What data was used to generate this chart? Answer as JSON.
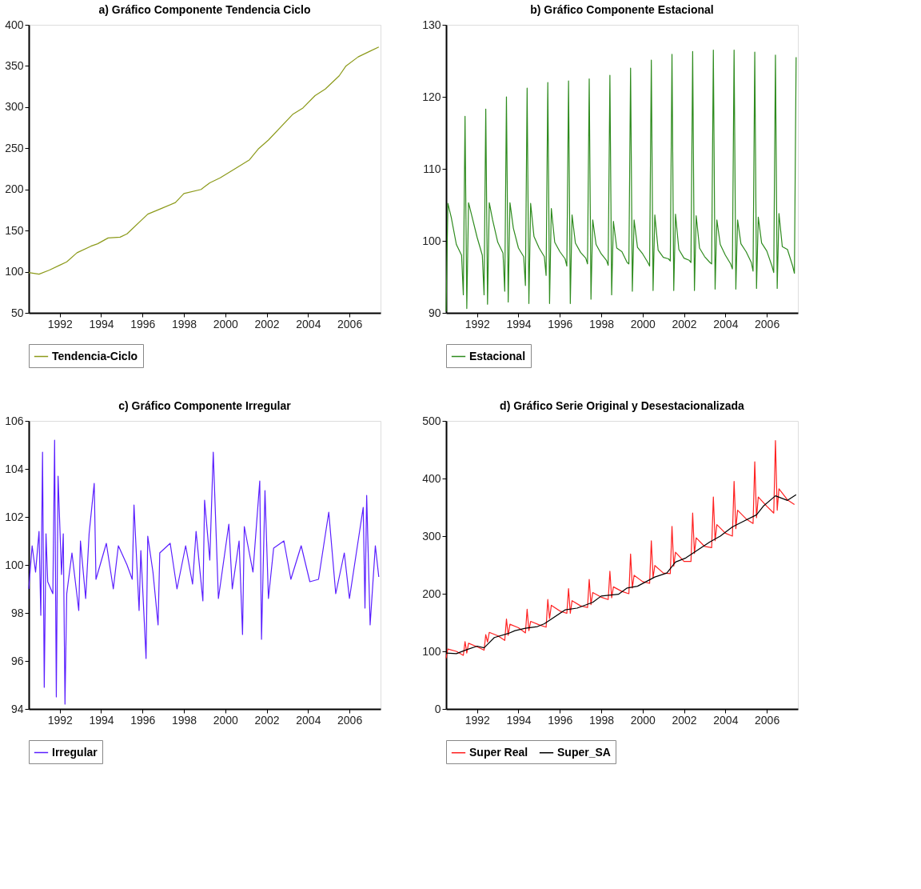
{
  "chart_data": [
    {
      "type": "line",
      "title": "a) Gráfico Componente Tendencia Ciclo",
      "legend": "bottom",
      "xlim": [
        "1991-01",
        "2008-01"
      ],
      "ylim": [
        50,
        400
      ],
      "yticks": [
        50,
        100,
        150,
        200,
        250,
        300,
        350,
        400
      ],
      "xticks": [
        {
          "value": "1992-07",
          "label": "1992"
        },
        {
          "value": "1994-07",
          "label": "1994"
        },
        {
          "value": "1996-07",
          "label": "1996"
        },
        {
          "value": "1998-07",
          "label": "1998"
        },
        {
          "value": "2000-07",
          "label": "2000"
        },
        {
          "value": "2002-07",
          "label": "2002"
        },
        {
          "value": "2004-07",
          "label": "2004"
        },
        {
          "value": "2006-07",
          "label": "2006"
        }
      ],
      "series": [
        {
          "name": "Tendencia-Ciclo",
          "color": "#8c9a1a",
          "x": [
            "1991-01",
            "1991-07",
            "1992-01",
            "1992-07",
            "1992-11",
            "1993-05",
            "1994-01",
            "1994-05",
            "1994-11",
            "1995-06",
            "1995-10",
            "1996-10",
            "1997-05",
            "1998-02",
            "1998-07",
            "1999-05",
            "1999-10",
            "2000-04",
            "2001-02",
            "2001-09",
            "2002-02",
            "2002-08",
            "2003-10",
            "2004-04",
            "2004-11",
            "2005-05",
            "2006-01",
            "2006-05",
            "2006-12",
            "2007-07",
            "2007-12"
          ],
          "values": [
            99,
            97,
            102,
            108,
            112,
            123,
            131,
            134,
            141,
            142,
            146,
            170,
            176,
            184,
            195,
            200,
            208,
            214,
            227,
            236,
            249,
            260,
            291,
            299,
            314,
            322,
            338,
            350,
            361,
            368,
            373
          ]
        }
      ]
    },
    {
      "type": "line",
      "title": "b) Gráfico Componente Estacional",
      "legend": "bottom",
      "xlim": [
        "1991-01",
        "2008-01"
      ],
      "ylim": [
        90,
        130
      ],
      "yticks": [
        90,
        100,
        110,
        120,
        130
      ],
      "xticks": [
        {
          "value": "1992-07",
          "label": "1992"
        },
        {
          "value": "1994-07",
          "label": "1994"
        },
        {
          "value": "1996-07",
          "label": "1996"
        },
        {
          "value": "1998-07",
          "label": "1998"
        },
        {
          "value": "2000-07",
          "label": "2000"
        },
        {
          "value": "2002-07",
          "label": "2002"
        },
        {
          "value": "2004-07",
          "label": "2004"
        },
        {
          "value": "2006-07",
          "label": "2006"
        }
      ],
      "series": [
        {
          "name": "Estacional",
          "color": "#2e8b1e",
          "x": [
            "1991-01",
            "1991-02",
            "1991-04",
            "1991-07",
            "1991-10",
            "1991-11",
            "1991-12",
            "1992-01",
            "1992-02",
            "1992-04",
            "1992-07",
            "1992-10",
            "1992-11",
            "1992-12",
            "1993-01",
            "1993-02",
            "1993-04",
            "1993-07",
            "1993-10",
            "1993-11",
            "1993-12",
            "1994-01",
            "1994-02",
            "1994-04",
            "1994-07",
            "1994-10",
            "1994-11",
            "1994-12",
            "1995-01",
            "1995-02",
            "1995-04",
            "1995-07",
            "1995-10",
            "1995-11",
            "1995-12",
            "1996-01",
            "1996-02",
            "1996-04",
            "1996-07",
            "1996-10",
            "1996-11",
            "1996-12",
            "1997-01",
            "1997-02",
            "1997-04",
            "1997-07",
            "1997-10",
            "1997-11",
            "1997-12",
            "1998-01",
            "1998-02",
            "1998-04",
            "1998-07",
            "1998-10",
            "1998-11",
            "1998-12",
            "1999-01",
            "1999-02",
            "1999-04",
            "1999-07",
            "1999-10",
            "1999-11",
            "1999-12",
            "2000-01",
            "2000-02",
            "2000-04",
            "2000-07",
            "2000-10",
            "2000-11",
            "2000-12",
            "2001-01",
            "2001-02",
            "2001-04",
            "2001-07",
            "2001-10",
            "2001-11",
            "2001-12",
            "2002-01",
            "2002-02",
            "2002-04",
            "2002-07",
            "2002-10",
            "2002-11",
            "2002-12",
            "2003-01",
            "2003-02",
            "2003-04",
            "2003-07",
            "2003-10",
            "2003-11",
            "2003-12",
            "2004-01",
            "2004-02",
            "2004-04",
            "2004-07",
            "2004-10",
            "2004-11",
            "2004-12",
            "2005-01",
            "2005-02",
            "2005-04",
            "2005-07",
            "2005-10",
            "2005-11",
            "2005-12",
            "2006-01",
            "2006-02",
            "2006-04",
            "2006-07",
            "2006-10",
            "2006-11",
            "2006-12",
            "2007-01",
            "2007-02",
            "2007-04",
            "2007-07",
            "2007-10",
            "2007-11",
            "2007-12"
          ],
          "values": [
            90.2,
            105.2,
            103.3,
            99.5,
            98,
            92.5,
            117.3,
            90.6,
            105.3,
            103.4,
            100.5,
            98,
            92.5,
            118.3,
            91.2,
            105.3,
            102.9,
            99.8,
            98.3,
            93,
            120,
            91.5,
            105.3,
            101.8,
            99,
            97.8,
            93.8,
            121.2,
            91.3,
            105.2,
            100.6,
            99,
            97.8,
            95.2,
            122,
            91.3,
            104.5,
            99.8,
            98.5,
            97.5,
            96.5,
            122.2,
            91.3,
            103.6,
            99.7,
            98.4,
            97.6,
            96.8,
            122.5,
            91.9,
            102.9,
            99.5,
            98.2,
            97.3,
            96.6,
            123,
            92.5,
            102.7,
            99,
            98.5,
            97,
            96.8,
            124,
            93,
            102.9,
            99.1,
            98.2,
            97,
            96.5,
            125.1,
            93.1,
            103.6,
            98.7,
            97.7,
            97.5,
            97.2,
            125.9,
            93.1,
            103.7,
            98.8,
            97.6,
            97.3,
            97,
            126.3,
            93.1,
            103.5,
            99,
            97.8,
            97,
            96.8,
            126.5,
            93.3,
            102.9,
            99.5,
            98,
            96.8,
            96.1,
            126.5,
            93.3,
            102.9,
            99.6,
            98.5,
            97,
            95.8,
            126.2,
            93.4,
            103.3,
            99.7,
            98.6,
            96.5,
            95.6,
            125.8,
            93.4,
            103.8,
            99.2,
            98.8,
            96.5,
            95.5,
            125.5
          ]
        }
      ]
    },
    {
      "type": "line",
      "title": "c) Gráfico Componente Irregular",
      "legend": "bottom",
      "xlim": [
        "1991-01",
        "2008-01"
      ],
      "ylim": [
        94,
        106
      ],
      "yticks": [
        94,
        96,
        98,
        100,
        102,
        104,
        106
      ],
      "xticks": [
        {
          "value": "1992-07",
          "label": "1992"
        },
        {
          "value": "1994-07",
          "label": "1994"
        },
        {
          "value": "1996-07",
          "label": "1996"
        },
        {
          "value": "1998-07",
          "label": "1998"
        },
        {
          "value": "2000-07",
          "label": "2000"
        },
        {
          "value": "2002-07",
          "label": "2002"
        },
        {
          "value": "2004-07",
          "label": "2004"
        },
        {
          "value": "2006-07",
          "label": "2006"
        }
      ],
      "series": [
        {
          "name": "Irregular",
          "color": "#5a1fff",
          "x": [
            "1991-01",
            "1991-03",
            "1991-05",
            "1991-07",
            "1991-08",
            "1991-09",
            "1991-10",
            "1991-11",
            "1991-12",
            "1992-03",
            "1992-04",
            "1992-05",
            "1992-06",
            "1992-08",
            "1992-09",
            "1992-10",
            "1992-11",
            "1993-02",
            "1993-06",
            "1993-07",
            "1993-10",
            "1993-12",
            "1994-03",
            "1994-04",
            "1994-10",
            "1995-02",
            "1995-05",
            "1995-10",
            "1996-01",
            "1996-02",
            "1996-05",
            "1996-06",
            "1996-09",
            "1996-10",
            "1997-01",
            "1997-04",
            "1997-05",
            "1997-11",
            "1998-03",
            "1998-08",
            "1998-12",
            "1999-02",
            "1999-06",
            "1999-07",
            "1999-10",
            "1999-12",
            "2000-03",
            "2000-09",
            "2000-11",
            "2001-03",
            "2001-05",
            "2001-06",
            "2001-11",
            "2002-03",
            "2002-04",
            "2002-06",
            "2002-08",
            "2002-11",
            "2003-05",
            "2003-09",
            "2004-03",
            "2004-08",
            "2005-01",
            "2005-07",
            "2005-11",
            "2006-04",
            "2006-07",
            "2007-03",
            "2007-04",
            "2007-05",
            "2007-07",
            "2007-10",
            "2007-12"
          ],
          "values": [
            99.0,
            100.8,
            99.7,
            101.4,
            97.9,
            104.7,
            94.9,
            101.3,
            99.3,
            98.8,
            105.2,
            94.5,
            103.7,
            99.6,
            101.3,
            94.2,
            98.8,
            100.5,
            98.1,
            101.0,
            98.6,
            101.3,
            103.4,
            99.4,
            100.9,
            99.0,
            100.8,
            100.0,
            99.4,
            102.5,
            98.1,
            100.6,
            96.1,
            101.2,
            99.7,
            97.5,
            100.5,
            100.9,
            99.0,
            100.8,
            99.2,
            101.4,
            98.5,
            102.7,
            100.2,
            104.7,
            98.6,
            101.7,
            99.0,
            101.0,
            97.1,
            101.6,
            99.7,
            103.5,
            96.9,
            103.1,
            98.6,
            100.7,
            101.0,
            99.4,
            100.8,
            99.3,
            99.4,
            102.2,
            98.8,
            100.5,
            98.6,
            102.4,
            98.2,
            102.9,
            97.5,
            100.8,
            99.5
          ]
        }
      ]
    },
    {
      "type": "line",
      "title": "d) Gráfico Serie Original y Desestacionalizada",
      "legend": "bottom",
      "xlim": [
        "1991-01",
        "2008-01"
      ],
      "ylim": [
        0,
        500
      ],
      "yticks": [
        0,
        100,
        200,
        300,
        400,
        500
      ],
      "xticks": [
        {
          "value": "1992-07",
          "label": "1992"
        },
        {
          "value": "1994-07",
          "label": "1994"
        },
        {
          "value": "1996-07",
          "label": "1996"
        },
        {
          "value": "1998-07",
          "label": "1998"
        },
        {
          "value": "2000-07",
          "label": "2000"
        },
        {
          "value": "2002-07",
          "label": "2002"
        },
        {
          "value": "2004-07",
          "label": "2004"
        },
        {
          "value": "2006-07",
          "label": "2006"
        }
      ],
      "series": [
        {
          "name": "Super Real",
          "color": "#ff2020",
          "x": [
            "1991-01",
            "1991-02",
            "1991-07",
            "1991-11",
            "1991-12",
            "1992-01",
            "1992-02",
            "1992-07",
            "1992-11",
            "1992-12",
            "1993-01",
            "1993-02",
            "1993-07",
            "1993-11",
            "1993-12",
            "1994-01",
            "1994-02",
            "1994-07",
            "1994-11",
            "1994-12",
            "1995-01",
            "1995-02",
            "1995-07",
            "1995-11",
            "1995-12",
            "1996-01",
            "1996-02",
            "1996-07",
            "1996-11",
            "1996-12",
            "1997-01",
            "1997-02",
            "1997-07",
            "1997-11",
            "1997-12",
            "1998-01",
            "1998-02",
            "1998-07",
            "1998-11",
            "1998-12",
            "1999-01",
            "1999-02",
            "1999-07",
            "1999-11",
            "1999-12",
            "2000-01",
            "2000-02",
            "2000-07",
            "2000-11",
            "2000-12",
            "2001-01",
            "2001-02",
            "2001-07",
            "2001-11",
            "2001-12",
            "2002-01",
            "2002-02",
            "2002-07",
            "2002-11",
            "2002-12",
            "2003-01",
            "2003-02",
            "2003-07",
            "2003-11",
            "2003-12",
            "2004-01",
            "2004-02",
            "2004-07",
            "2004-11",
            "2004-12",
            "2005-01",
            "2005-02",
            "2005-07",
            "2005-11",
            "2005-12",
            "2006-01",
            "2006-02",
            "2006-07",
            "2006-11",
            "2006-12",
            "2007-01",
            "2007-02",
            "2007-07",
            "2007-11"
          ],
          "values": [
            88,
            104,
            100,
            93,
            117,
            97,
            114,
            108,
            102,
            129,
            116,
            133,
            127,
            119,
            156,
            128,
            147,
            141,
            132,
            173,
            136,
            152,
            146,
            142,
            190,
            157,
            180,
            170,
            166,
            209,
            166,
            188,
            179,
            176,
            225,
            181,
            202,
            194,
            190,
            239,
            193,
            212,
            204,
            200,
            269,
            210,
            232,
            221,
            218,
            292,
            228,
            249,
            236,
            235,
            317,
            248,
            272,
            256,
            256,
            340,
            270,
            297,
            282,
            280,
            368,
            292,
            320,
            305,
            300,
            395,
            313,
            345,
            330,
            322,
            429,
            332,
            368,
            352,
            340,
            466,
            345,
            382,
            363,
            355
          ]
        },
        {
          "name": "Super_SA",
          "color": "#000000",
          "x": [
            "1991-01",
            "1991-07",
            "1992-01",
            "1992-07",
            "1992-11",
            "1993-05",
            "1994-01",
            "1994-05",
            "1994-11",
            "1995-06",
            "1995-10",
            "1996-10",
            "1997-05",
            "1998-02",
            "1998-07",
            "1999-05",
            "1999-10",
            "2000-04",
            "2001-02",
            "2001-09",
            "2002-02",
            "2002-08",
            "2003-10",
            "2004-04",
            "2004-11",
            "2005-05",
            "2006-01",
            "2006-05",
            "2006-12",
            "2007-07",
            "2007-12"
          ],
          "values": [
            97,
            96,
            103,
            109,
            106,
            124,
            131,
            136,
            140,
            143,
            148,
            172,
            175,
            185,
            196,
            199,
            210,
            213,
            229,
            236,
            255,
            262,
            290,
            300,
            316,
            325,
            337,
            352,
            370,
            362,
            372
          ]
        }
      ]
    }
  ]
}
